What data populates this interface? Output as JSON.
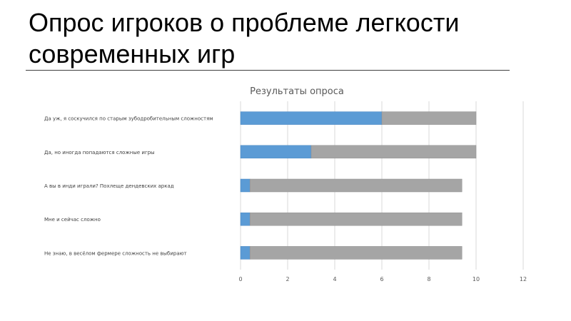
{
  "slide": {
    "title": "Опрос игроков о проблеме легкости современных игр"
  },
  "colors": {
    "primary": "#5b9bd5",
    "remainder": "#a5a5a5",
    "grid": "#d9d9d9",
    "label": "#404040"
  },
  "chart_data": {
    "type": "bar",
    "orientation": "horizontal",
    "stacked": true,
    "title": "Результаты опроса",
    "categories": [
      "Да уж, я соскучился по старым зубодробительным сложностям",
      "Да, но иногда попадаются сложные игры",
      "А вы в инди играли? Похлеще дендевских аркад",
      "Мне и сейчас сложно",
      "Не знаю, в весёлом фермере сложность не выбирают"
    ],
    "series": [
      {
        "values": [
          6,
          3,
          0.4,
          0.4,
          0.4
        ]
      },
      {
        "values": [
          4,
          7,
          9,
          9,
          9
        ]
      }
    ],
    "xlim": [
      0,
      12
    ],
    "xticks": [
      0,
      2,
      4,
      6,
      8,
      10,
      12
    ],
    "grid": true,
    "legend": "none",
    "xlabel": "",
    "ylabel": ""
  }
}
